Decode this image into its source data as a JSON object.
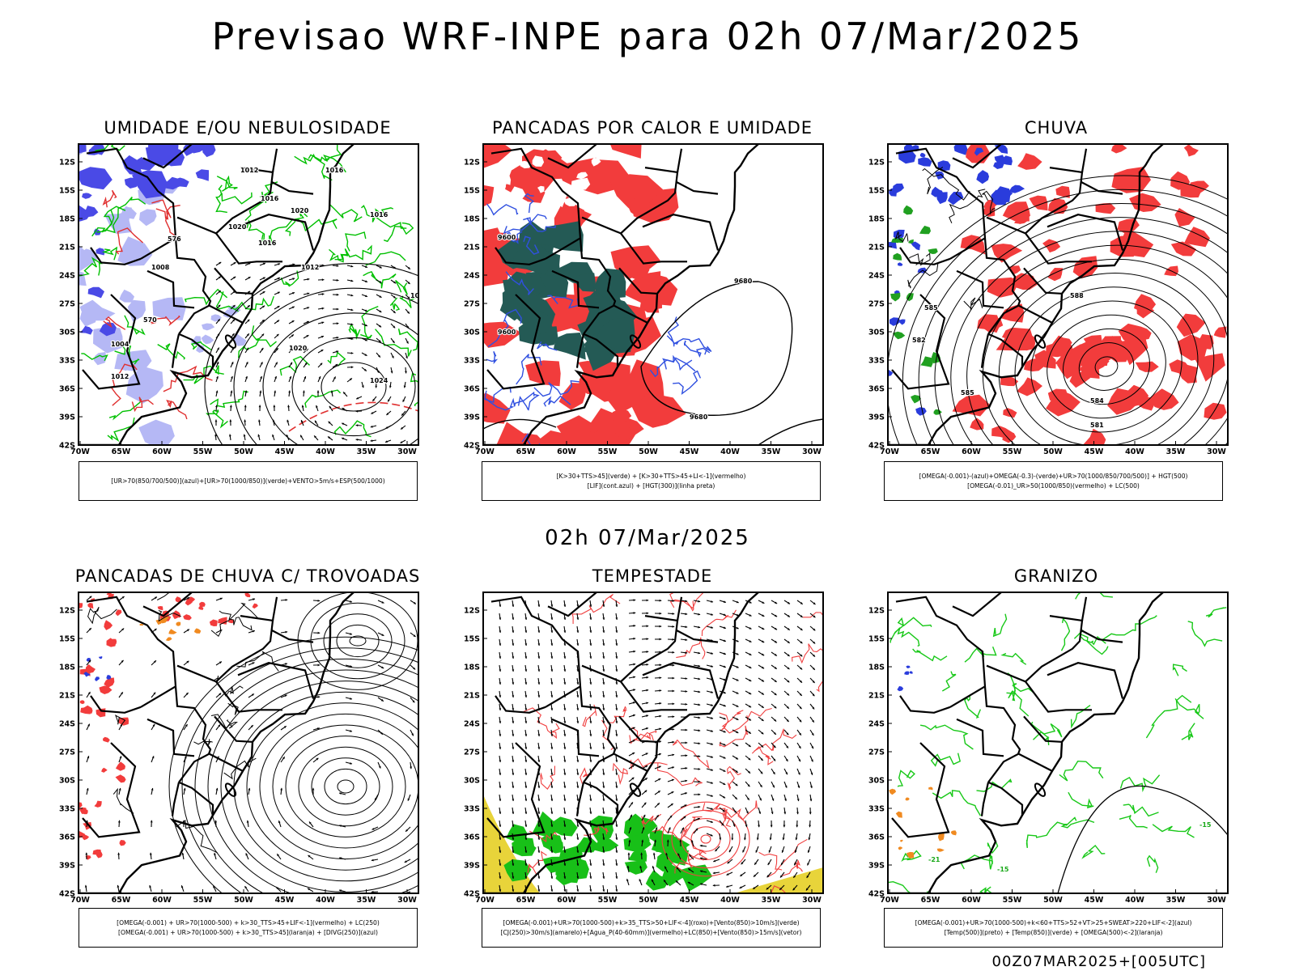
{
  "header": {
    "title": "Previsao WRF-INPE  para 02h 07/Mar/2025",
    "subtitle": "02h 07/Mar/2025",
    "footer": "00Z07MAR2025+[005UTC]"
  },
  "axes": {
    "lat_labels": [
      "12S",
      "15S",
      "18S",
      "21S",
      "24S",
      "27S",
      "30S",
      "33S",
      "36S",
      "39S",
      "42S"
    ],
    "lon_labels": [
      "70W",
      "65W",
      "60W",
      "55W",
      "50W",
      "45W",
      "40W",
      "35W",
      "30W"
    ]
  },
  "panels": [
    {
      "title": "UMIDADE E/OU NEBULOSIDADE",
      "legend": [
        "[UR>70(850/700/500)](azul)+[UR>70(1000/850)](verde)+VENTO>5m/s+ESP(500/1000)"
      ],
      "contour_labels": [
        "1012",
        "1016",
        "1020",
        "1012",
        "1016",
        "1020",
        "1024",
        "1008",
        "1004",
        "1016",
        "576",
        "570",
        "1012",
        "1016",
        "1020",
        "1020"
      ]
    },
    {
      "title": "PANCADAS POR CALOR E UMIDADE",
      "legend": [
        "[K>30+TTS>45](verde) + [K>30+TTS>45+LI<-1](vermelho)",
        "[LIF](cont.azul) + [HGT(300)](linha preta)"
      ],
      "contour_labels": [
        "9680",
        "9600",
        "9680",
        "9600"
      ]
    },
    {
      "title": "CHUVA",
      "legend": [
        "[OMEGA(-0.001)-(azul)+OMEGA(-0.3)-(verde)+UR>70(1000/850/700/500)] + HGT(500)",
        "[OMEGA(-0.01)_UR>50(1000/850)(vermelho) + LC(500)"
      ],
      "contour_labels": [
        "588",
        "585",
        "582",
        "585",
        "584",
        "581"
      ]
    },
    {
      "title": "PANCADAS DE CHUVA C/ TROVOADAS",
      "legend": [
        "[OMEGA(-0.001) + UR>70(1000-500) + k>30_TTS>45+LIF<-1](vermelho) + LC(250)",
        "[OMEGA(-0.001) + UR>70(1000-500) + k>30_TTS>45](laranja) + [DIVG(250)](azul)"
      ],
      "contour_labels": []
    },
    {
      "title": "TEMPESTADE",
      "legend": [
        "[OMEGA(-0.001)+UR>70(1000-500)+k>35_TTS>50+LIF<-4](roxo)+[Vento(850)>10m/s](verde)",
        "[CJ(250)>30m/s](amarelo)+[Agua_P(40-60mm)](vermelho)+LC(850)+[Vento(850)>15m/s](vetor)"
      ],
      "contour_labels": []
    },
    {
      "title": "GRANIZO",
      "legend": [
        "[OMEGA(-0.001)+UR>70(1000-500)+k<60+TTS>52+VT>25+SWEAT>220+LIF<-2](azul)",
        "[Temp(500)](preto) + [Temp(850)](verde) + [OMEGA(500)<-2](laranja)"
      ],
      "contour_labels": [
        "-15",
        "-15",
        "-21"
      ]
    }
  ]
}
